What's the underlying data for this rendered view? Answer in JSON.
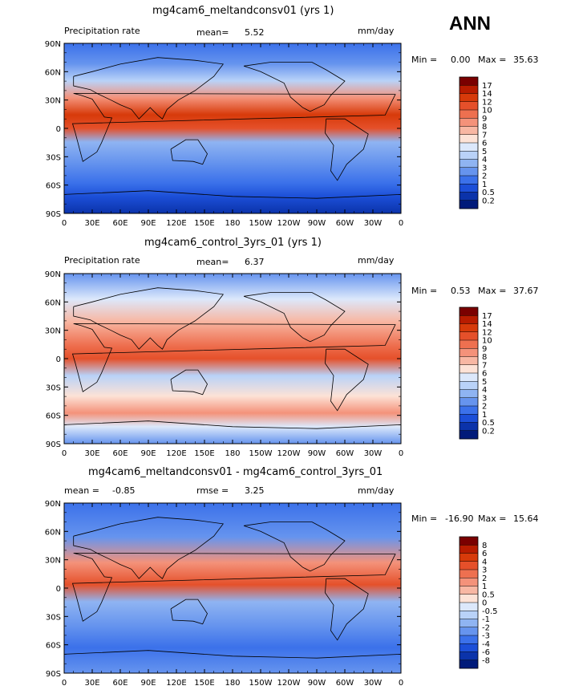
{
  "season": "ANN",
  "tick_labels": {
    "lat": [
      "90N",
      "60N",
      "30N",
      "0",
      "30S",
      "60S",
      "90S"
    ],
    "lon": [
      "0",
      "30E",
      "60E",
      "90E",
      "120E",
      "150E",
      "180",
      "150W",
      "120W",
      "90W",
      "60W",
      "30W",
      "0"
    ]
  },
  "panels": [
    {
      "title": "mg4cam6_meltandconsv01 (yrs 1)",
      "left_label": "Precipitation rate",
      "mid_label": "mean=",
      "mid_value": "5.52",
      "mid2_label": "",
      "mid2_value": "",
      "units": "mm/day",
      "min_label": "Min =",
      "min_value": "0.00",
      "max_label": "Max =",
      "max_value": "35.63",
      "colorbar": {
        "labels": [
          "17",
          "14",
          "12",
          "10",
          "9",
          "8",
          "7",
          "6",
          "5",
          "4",
          "3",
          "2",
          "1",
          "0.5",
          "0.2"
        ],
        "colors": [
          "#7a0000",
          "#b81c00",
          "#d73a0a",
          "#e5502a",
          "#ee7050",
          "#f4927a",
          "#f8b7a3",
          "#fde2d6",
          "#dce8fb",
          "#b9d2f8",
          "#8fb4f2",
          "#6694ee",
          "#3b71ea",
          "#1c4fd8",
          "#0b33aa",
          "#001a7a"
        ]
      }
    },
    {
      "title": "mg4cam6_control_3yrs_01 (yrs 1)",
      "left_label": "Precipitation rate",
      "mid_label": "mean=",
      "mid_value": "6.37",
      "mid2_label": "",
      "mid2_value": "",
      "units": "mm/day",
      "min_label": "Min =",
      "min_value": "0.53",
      "max_label": "Max =",
      "max_value": "37.67",
      "colorbar": {
        "labels": [
          "17",
          "14",
          "12",
          "10",
          "9",
          "8",
          "7",
          "6",
          "5",
          "4",
          "3",
          "2",
          "1",
          "0.5",
          "0.2"
        ],
        "colors": [
          "#7a0000",
          "#b81c00",
          "#d73a0a",
          "#e5502a",
          "#ee7050",
          "#f4927a",
          "#f8b7a3",
          "#fde2d6",
          "#dce8fb",
          "#b9d2f8",
          "#8fb4f2",
          "#6694ee",
          "#3b71ea",
          "#1c4fd8",
          "#0b33aa",
          "#001a7a"
        ]
      }
    },
    {
      "title": "mg4cam6_meltandconsv01 - mg4cam6_control_3yrs_01",
      "left_label": "mean =",
      "mid_label": "",
      "mid_value": "",
      "mid2_label": "rmse =",
      "mid2_value": "3.25",
      "left_value": "-0.85",
      "units": "mm/day",
      "min_label": "Min =",
      "min_value": "-16.90",
      "max_label": "Max =",
      "max_value": "15.64",
      "colorbar": {
        "labels": [
          "8",
          "6",
          "4",
          "3",
          "2",
          "1",
          "0.5",
          "0",
          "-0.5",
          "-1",
          "-2",
          "-3",
          "-4",
          "-6",
          "-8"
        ],
        "colors": [
          "#7a0000",
          "#b81c00",
          "#d73a0a",
          "#e5502a",
          "#ee7050",
          "#f4927a",
          "#f8b7a3",
          "#fde2d6",
          "#dce8fb",
          "#b9d2f8",
          "#8fb4f2",
          "#6694ee",
          "#3b71ea",
          "#1c4fd8",
          "#0b33aa",
          "#001a7a"
        ]
      }
    }
  ],
  "chart_data": [
    {
      "type": "heatmap",
      "title": "mg4cam6_meltandconsv01 (yrs 1)",
      "variable": "Precipitation rate",
      "units": "mm/day",
      "mean": 5.52,
      "min": 0.0,
      "max": 35.63,
      "xlabel": "",
      "ylabel": "",
      "xlim": [
        0,
        360
      ],
      "ylim": [
        -90,
        90
      ],
      "levels": [
        0.2,
        0.5,
        1,
        2,
        3,
        4,
        5,
        6,
        7,
        8,
        9,
        10,
        12,
        14,
        17
      ]
    },
    {
      "type": "heatmap",
      "title": "mg4cam6_control_3yrs_01 (yrs 1)",
      "variable": "Precipitation rate",
      "units": "mm/day",
      "mean": 6.37,
      "min": 0.53,
      "max": 37.67,
      "xlabel": "",
      "ylabel": "",
      "xlim": [
        0,
        360
      ],
      "ylim": [
        -90,
        90
      ],
      "levels": [
        0.2,
        0.5,
        1,
        2,
        3,
        4,
        5,
        6,
        7,
        8,
        9,
        10,
        12,
        14,
        17
      ]
    },
    {
      "type": "heatmap",
      "title": "mg4cam6_meltandconsv01 - mg4cam6_control_3yrs_01",
      "units": "mm/day",
      "mean": -0.85,
      "rmse": 3.25,
      "min": -16.9,
      "max": 15.64,
      "xlabel": "",
      "ylabel": "",
      "xlim": [
        0,
        360
      ],
      "ylim": [
        -90,
        90
      ],
      "levels": [
        -8,
        -6,
        -4,
        -3,
        -2,
        -1,
        -0.5,
        0,
        0.5,
        1,
        2,
        3,
        4,
        6,
        8
      ]
    }
  ]
}
